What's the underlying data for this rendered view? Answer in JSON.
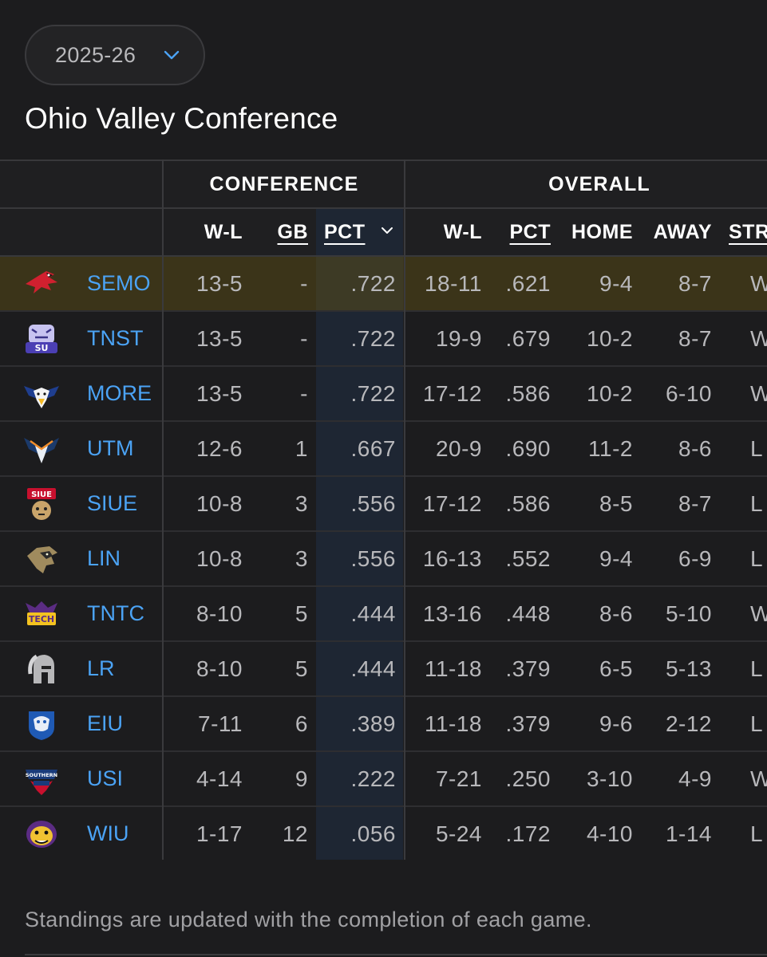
{
  "season_select": {
    "value": "2025-26",
    "icon": "chevron-down-icon"
  },
  "title": "Ohio Valley Conference",
  "groups": {
    "conference": "CONFERENCE",
    "overall": "OVERALL"
  },
  "columns": {
    "conf_wl": "W-L",
    "gb": "GB",
    "conf_pct": "PCT",
    "overall_wl": "W-L",
    "overall_pct": "PCT",
    "home": "HOME",
    "away": "AWAY",
    "streak": "STR"
  },
  "sort": {
    "column": "conf_pct",
    "icon": "sort-chevron-down-icon"
  },
  "colors": {
    "team_link": "#4ba3f5",
    "highlight_row": "#3b3419",
    "pct_column": "#1e2633"
  },
  "teams": [
    {
      "abbr": "SEMO",
      "logo": "redhawk-logo",
      "conf_wl": "13-5",
      "gb": "-",
      "conf_pct": ".722",
      "overall_wl": "18-11",
      "overall_pct": ".621",
      "home": "9-4",
      "away": "8-7",
      "streak": "W",
      "highlight": true
    },
    {
      "abbr": "TNST",
      "logo": "tiger-logo",
      "conf_wl": "13-5",
      "gb": "-",
      "conf_pct": ".722",
      "overall_wl": "19-9",
      "overall_pct": ".679",
      "home": "10-2",
      "away": "8-7",
      "streak": "W"
    },
    {
      "abbr": "MORE",
      "logo": "eagle-logo",
      "conf_wl": "13-5",
      "gb": "-",
      "conf_pct": ".722",
      "overall_wl": "17-12",
      "overall_pct": ".586",
      "home": "10-2",
      "away": "6-10",
      "streak": "W"
    },
    {
      "abbr": "UTM",
      "logo": "skyhawk-logo",
      "conf_wl": "12-6",
      "gb": "1",
      "conf_pct": ".667",
      "overall_wl": "20-9",
      "overall_pct": ".690",
      "home": "11-2",
      "away": "8-6",
      "streak": "L"
    },
    {
      "abbr": "SIUE",
      "logo": "cougar-logo",
      "conf_wl": "10-8",
      "gb": "3",
      "conf_pct": ".556",
      "overall_wl": "17-12",
      "overall_pct": ".586",
      "home": "8-5",
      "away": "8-7",
      "streak": "L"
    },
    {
      "abbr": "LIN",
      "logo": "lion-logo",
      "conf_wl": "10-8",
      "gb": "3",
      "conf_pct": ".556",
      "overall_wl": "16-13",
      "overall_pct": ".552",
      "home": "9-4",
      "away": "6-9",
      "streak": "L"
    },
    {
      "abbr": "TNTC",
      "logo": "golden-eagle-logo",
      "conf_wl": "8-10",
      "gb": "5",
      "conf_pct": ".444",
      "overall_wl": "13-16",
      "overall_pct": ".448",
      "home": "8-6",
      "away": "5-10",
      "streak": "W"
    },
    {
      "abbr": "LR",
      "logo": "spartan-helmet-logo",
      "conf_wl": "8-10",
      "gb": "5",
      "conf_pct": ".444",
      "overall_wl": "11-18",
      "overall_pct": ".379",
      "home": "6-5",
      "away": "5-13",
      "streak": "L"
    },
    {
      "abbr": "EIU",
      "logo": "panther-logo",
      "conf_wl": "7-11",
      "gb": "6",
      "conf_pct": ".389",
      "overall_wl": "11-18",
      "overall_pct": ".379",
      "home": "9-6",
      "away": "2-12",
      "streak": "L"
    },
    {
      "abbr": "USI",
      "logo": "screaming-eagle-logo",
      "conf_wl": "4-14",
      "gb": "9",
      "conf_pct": ".222",
      "overall_wl": "7-21",
      "overall_pct": ".250",
      "home": "3-10",
      "away": "4-9",
      "streak": "W"
    },
    {
      "abbr": "WIU",
      "logo": "bulldog-logo",
      "conf_wl": "1-17",
      "gb": "12",
      "conf_pct": ".056",
      "overall_wl": "5-24",
      "overall_pct": ".172",
      "home": "4-10",
      "away": "1-14",
      "streak": "L"
    }
  ],
  "footer_note": "Standings are updated with the completion of each game."
}
